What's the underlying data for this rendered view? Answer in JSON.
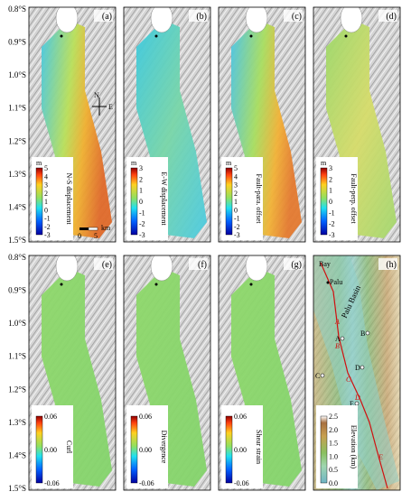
{
  "axis": {
    "top_labels": [
      "0.8°S",
      "0.9°S",
      "1.0°S",
      "1.1°S",
      "1.2°S",
      "1.3°S",
      "1.4°S",
      "1.5°S"
    ],
    "bottom_labels": [
      "0.8°S",
      "0.9°S",
      "1.0°S",
      "1.1°S",
      "1.2°S",
      "1.3°S",
      "1.4°S",
      "1.5°S"
    ]
  },
  "panels": [
    {
      "letter": "(a)",
      "colorbar": {
        "unit": "m",
        "label": "N-S displacement",
        "ticks": [
          "5",
          "4",
          "3",
          "2",
          "1",
          "0",
          "-1",
          "-2",
          "-3"
        ]
      }
    },
    {
      "letter": "(b)",
      "colorbar": {
        "unit": "m",
        "label": "E-W displacement",
        "ticks": [
          "3",
          "2",
          "1",
          "0",
          "-1",
          "-2",
          "-3"
        ]
      }
    },
    {
      "letter": "(c)",
      "colorbar": {
        "unit": "m",
        "label": "Fault-para. offset",
        "ticks": [
          "5",
          "4",
          "3",
          "2",
          "1",
          "0",
          "-1",
          "-2",
          "-3"
        ]
      }
    },
    {
      "letter": "(d)",
      "colorbar": {
        "unit": "m",
        "label": "Fault-perp. offset",
        "ticks": [
          "3",
          "2",
          "1",
          "0",
          "-1",
          "-2",
          "-3"
        ]
      }
    },
    {
      "letter": "(e)",
      "colorbar": {
        "label": "Curl",
        "ticks": [
          "0.06",
          "0.00",
          "-0.06"
        ]
      }
    },
    {
      "letter": "(f)",
      "colorbar": {
        "label": "Divergence",
        "ticks": [
          "0.06",
          "0.00",
          "-0.06"
        ]
      }
    },
    {
      "letter": "(g)",
      "colorbar": {
        "label": "Shear strain",
        "ticks": [
          "0.06",
          "0.00",
          "-0.06"
        ]
      }
    },
    {
      "letter": "(h)",
      "colorbar": {
        "label": "Elevation (km)",
        "ticks": [
          "2.5",
          "2.0",
          "1.5",
          "1.0",
          "0.5",
          "0.0"
        ]
      }
    }
  ],
  "north_arrow": {
    "north": "N",
    "east": "E"
  },
  "scale_bar": {
    "zero": "0",
    "five": "5",
    "unit": "km"
  },
  "map_labels": [
    "Bay",
    "Palu",
    "Palu Basin",
    "A",
    "B",
    "C",
    "D",
    "E",
    "A",
    "B",
    "C",
    "D",
    "E"
  ]
}
